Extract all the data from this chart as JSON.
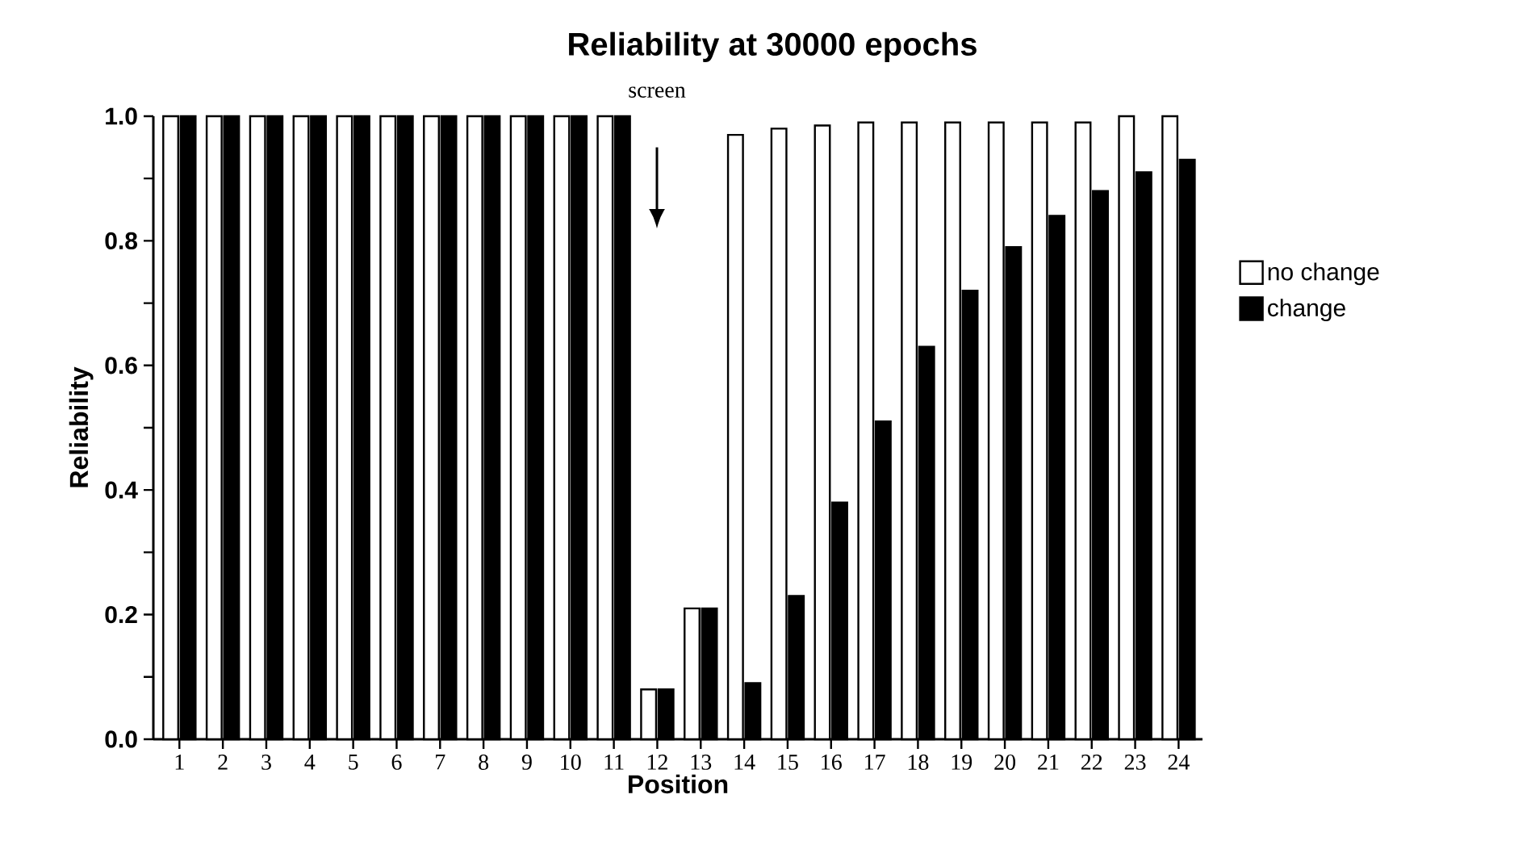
{
  "chart_data": {
    "type": "bar",
    "title": "Reliability  at  30000  epochs",
    "xlabel": "Position",
    "ylabel": "Reliability",
    "categories": [
      "1",
      "2",
      "3",
      "4",
      "5",
      "6",
      "7",
      "8",
      "9",
      "10",
      "11",
      "12",
      "13",
      "14",
      "15",
      "16",
      "17",
      "18",
      "19",
      "20",
      "21",
      "22",
      "23",
      "24"
    ],
    "series": [
      {
        "name": "no change",
        "color": "#ffffff",
        "values": [
          1,
          1,
          1,
          1,
          1,
          1,
          1,
          1,
          1,
          1,
          1,
          0.08,
          0.21,
          0.97,
          0.98,
          0.985,
          0.99,
          0.99,
          0.99,
          0.99,
          0.99,
          0.99,
          1,
          1
        ]
      },
      {
        "name": "change",
        "color": "#000000",
        "values": [
          1,
          1,
          1,
          1,
          1,
          1,
          1,
          1,
          1,
          1,
          1,
          0.08,
          0.21,
          0.09,
          0.23,
          0.38,
          0.51,
          0.63,
          0.72,
          0.79,
          0.84,
          0.88,
          0.91,
          0.93
        ]
      }
    ],
    "ylim": [
      0,
      1.0
    ],
    "yticks": [
      {
        "value": 0,
        "label": "0.0"
      },
      {
        "value": 0.1,
        "label": null
      },
      {
        "value": 0.2,
        "label": "0.2"
      },
      {
        "value": 0.3,
        "label": null
      },
      {
        "value": 0.4,
        "label": "0.4"
      },
      {
        "value": 0.5,
        "label": null
      },
      {
        "value": 0.6,
        "label": "0.6"
      },
      {
        "value": 0.7,
        "label": null
      },
      {
        "value": 0.8,
        "label": "0.8"
      },
      {
        "value": 0.9,
        "label": null
      },
      {
        "value": 1.0,
        "label": "1.0"
      }
    ],
    "annotations": [
      "screen"
    ],
    "legend": "right",
    "grid": false
  }
}
